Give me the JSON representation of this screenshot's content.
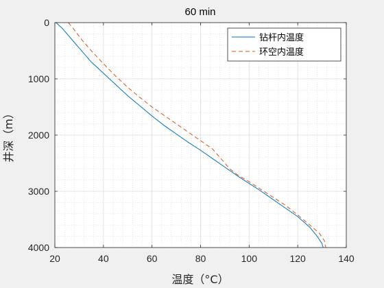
{
  "chart_data": {
    "type": "line",
    "title": "60 min",
    "xlabel": "温度（°C）",
    "ylabel": "井深（m）",
    "xlim": [
      20,
      140
    ],
    "ylim": [
      0,
      4000
    ],
    "y_reversed": true,
    "xticks": [
      "20",
      "40",
      "60",
      "80",
      "100",
      "120",
      "140"
    ],
    "yticks": [
      "0",
      "1000",
      "2000",
      "3000",
      "4000"
    ],
    "grid": "major and minor",
    "legend_position": "top-right",
    "series": [
      {
        "name": "钻杆内温度",
        "color": "#0072BD",
        "line_style": "solid",
        "points": [
          [
            20.5,
            0
          ],
          [
            23,
            100
          ],
          [
            26,
            250
          ],
          [
            30,
            450
          ],
          [
            35,
            700
          ],
          [
            40,
            900
          ],
          [
            45,
            1100
          ],
          [
            50,
            1300
          ],
          [
            55,
            1480
          ],
          [
            60,
            1660
          ],
          [
            65,
            1830
          ],
          [
            70,
            1980
          ],
          [
            75,
            2130
          ],
          [
            80,
            2270
          ],
          [
            85,
            2420
          ],
          [
            90,
            2570
          ],
          [
            95,
            2720
          ],
          [
            100,
            2860
          ],
          [
            105,
            3000
          ],
          [
            110,
            3150
          ],
          [
            115,
            3300
          ],
          [
            120,
            3450
          ],
          [
            125,
            3640
          ],
          [
            128,
            3800
          ],
          [
            130,
            3930
          ],
          [
            130.5,
            4000
          ]
        ]
      },
      {
        "name": "环空内温度",
        "color": "#D95319",
        "line_style": "dashed",
        "points": [
          [
            25.5,
            0
          ],
          [
            27.5,
            100
          ],
          [
            31,
            300
          ],
          [
            35,
            500
          ],
          [
            40,
            730
          ],
          [
            45,
            950
          ],
          [
            50,
            1150
          ],
          [
            55,
            1330
          ],
          [
            60,
            1500
          ],
          [
            65,
            1650
          ],
          [
            70,
            1800
          ],
          [
            75,
            1950
          ],
          [
            80,
            2100
          ],
          [
            85,
            2250
          ],
          [
            88,
            2400
          ],
          [
            90,
            2500
          ],
          [
            92,
            2600
          ],
          [
            95,
            2700
          ],
          [
            100,
            2830
          ],
          [
            105,
            2970
          ],
          [
            110,
            3110
          ],
          [
            115,
            3250
          ],
          [
            120,
            3420
          ],
          [
            125,
            3600
          ],
          [
            129,
            3750
          ],
          [
            131,
            3880
          ],
          [
            131.5,
            4000
          ]
        ]
      }
    ]
  }
}
